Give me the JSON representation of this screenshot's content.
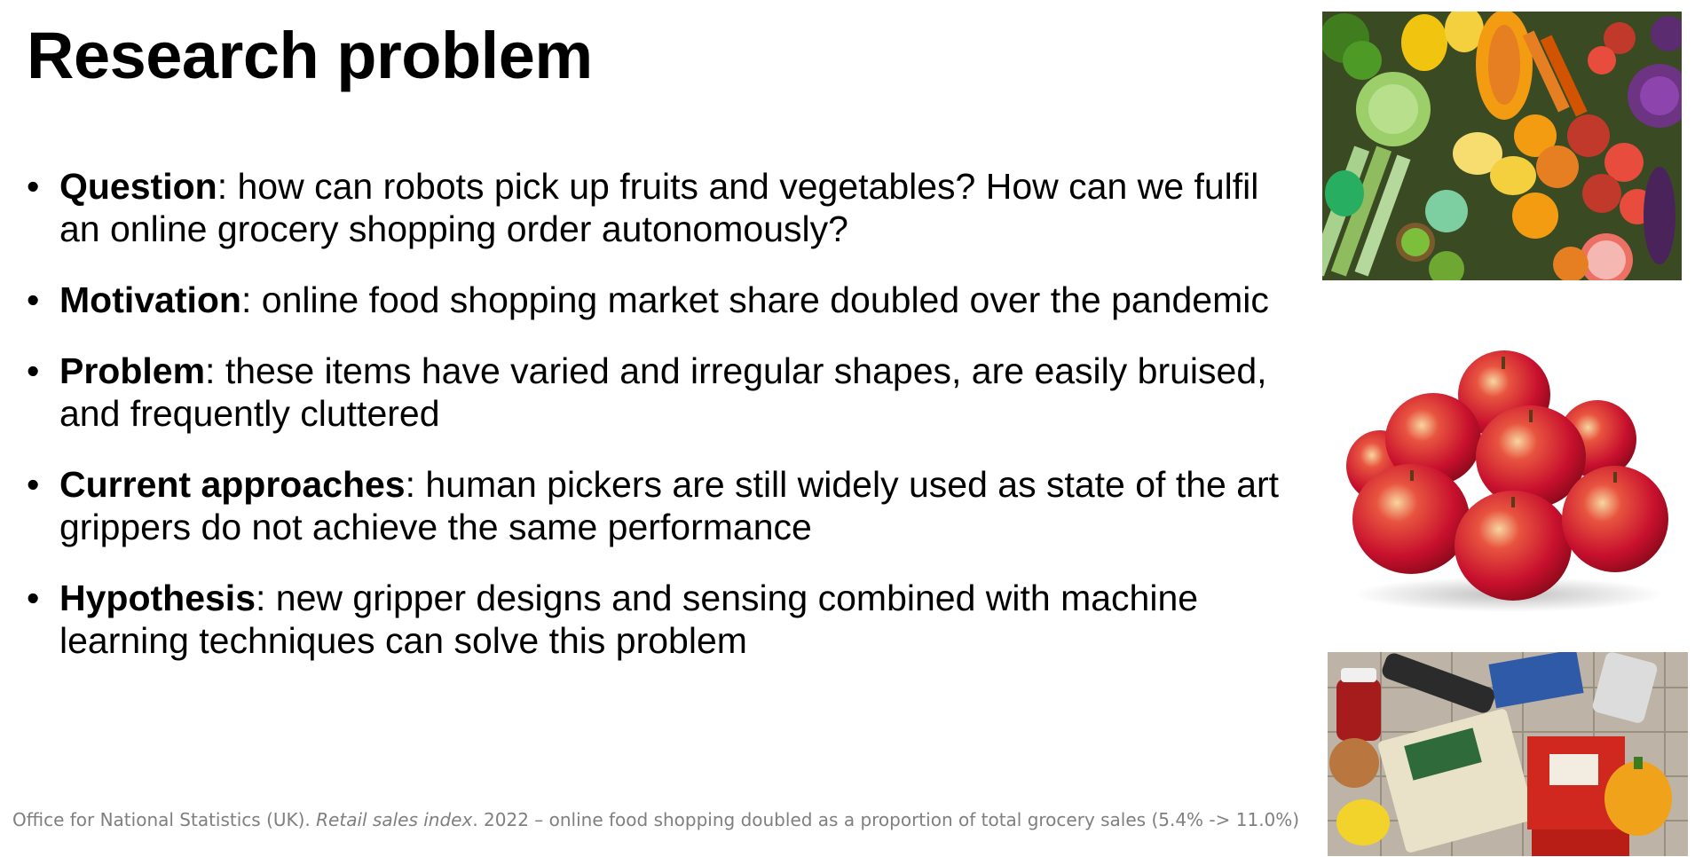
{
  "slide": {
    "title": "Research problem",
    "bullets": [
      {
        "term": "Question",
        "text": ": how can robots pick up fruits and vegetables? How can we fulfil an online grocery shopping order autonomously?"
      },
      {
        "term": "Motivation",
        "text": ": online food shopping market share doubled over the pandemic"
      },
      {
        "term": "Problem",
        "text": ": these items have varied and irregular shapes, are easily bruised, and frequently cluttered"
      },
      {
        "term": "Current approaches",
        "text": ": human pickers are still widely used as state of the art grippers do not achieve the same performance"
      },
      {
        "term": "Hypothesis",
        "text": ": new gripper designs and sensing combined with machine learning techniques can solve this problem"
      }
    ],
    "bullet_glyph": "•",
    "footnote": {
      "prefix": "Office for National Statistics (UK). ",
      "italic": "Retail sales index",
      "suffix": ". 2022 – online food shopping doubled as a proportion of total grocery sales (5.4% -> 11.0%)"
    }
  },
  "images": {
    "veg_icon": "fruit-vegetables-photo",
    "apples_icon": "apples-photo",
    "groceries_icon": "groceries-photo"
  },
  "colors": {
    "footnote": "#7f7f7f",
    "apple_red": "#c8102e",
    "apple_yellow": "#f2c94c"
  }
}
